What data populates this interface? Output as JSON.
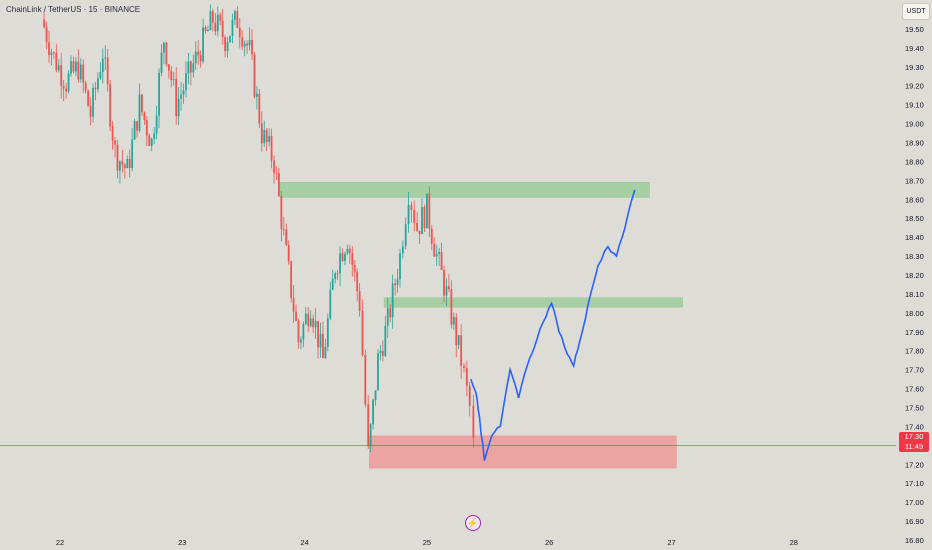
{
  "header": {
    "symbol_title": "ChainLink / TetherUS · 15 · BINANCE"
  },
  "currency_button": "USDT",
  "last_price": {
    "price": "17.30",
    "countdown": "11:49",
    "value": 17.3,
    "color": "#f23645"
  },
  "icons": {
    "snapshot": "lightning-icon"
  },
  "colors": {
    "background": "#dedcd6",
    "up": "#26a69a",
    "down": "#ef5350",
    "projection": "#2962ff",
    "supply_zone": "#8fc98f",
    "demand_zone": "#f28b8b"
  },
  "chart_data": {
    "type": "candlestick",
    "pair": "LINK/USDT",
    "timeframe": "15",
    "exchange": "BINANCE",
    "ylim": [
      16.8,
      19.6
    ],
    "y_ticks": [
      19.5,
      19.4,
      19.3,
      19.2,
      19.1,
      19.0,
      18.9,
      18.8,
      18.7,
      18.6,
      18.5,
      18.4,
      18.3,
      18.2,
      18.1,
      18.0,
      17.9,
      17.8,
      17.7,
      17.6,
      17.5,
      17.4,
      17.3,
      17.2,
      17.1,
      17.0,
      16.9,
      16.8
    ],
    "x_ticks": [
      "22",
      "23",
      "24",
      "25",
      "26",
      "27",
      "28"
    ],
    "price_path": [
      {
        "x": 21.85,
        "y": 19.55
      },
      {
        "x": 21.95,
        "y": 19.35
      },
      {
        "x": 22.05,
        "y": 19.22
      },
      {
        "x": 22.15,
        "y": 19.3
      },
      {
        "x": 22.25,
        "y": 19.05
      },
      {
        "x": 22.35,
        "y": 19.38
      },
      {
        "x": 22.45,
        "y": 18.85
      },
      {
        "x": 22.55,
        "y": 18.75
      },
      {
        "x": 22.65,
        "y": 19.1
      },
      {
        "x": 22.75,
        "y": 18.9
      },
      {
        "x": 22.85,
        "y": 19.45
      },
      {
        "x": 22.95,
        "y": 19.1
      },
      {
        "x": 23.05,
        "y": 19.25
      },
      {
        "x": 23.15,
        "y": 19.4
      },
      {
        "x": 23.25,
        "y": 19.55
      },
      {
        "x": 23.35,
        "y": 19.45
      },
      {
        "x": 23.45,
        "y": 19.55
      },
      {
        "x": 23.55,
        "y": 19.38
      },
      {
        "x": 23.65,
        "y": 18.95
      },
      {
        "x": 23.75,
        "y": 18.8
      },
      {
        "x": 23.85,
        "y": 18.3
      },
      {
        "x": 23.95,
        "y": 17.85
      },
      {
        "x": 24.05,
        "y": 18.05
      },
      {
        "x": 24.15,
        "y": 17.75
      },
      {
        "x": 24.25,
        "y": 18.25
      },
      {
        "x": 24.35,
        "y": 18.4
      },
      {
        "x": 24.45,
        "y": 18.05
      },
      {
        "x": 24.52,
        "y": 17.25
      },
      {
        "x": 24.6,
        "y": 17.75
      },
      {
        "x": 24.68,
        "y": 17.95
      },
      {
        "x": 24.78,
        "y": 18.3
      },
      {
        "x": 24.85,
        "y": 18.65
      },
      {
        "x": 24.92,
        "y": 18.45
      },
      {
        "x": 25.0,
        "y": 18.55
      },
      {
        "x": 25.08,
        "y": 18.3
      },
      {
        "x": 25.18,
        "y": 18.05
      },
      {
        "x": 25.28,
        "y": 17.75
      },
      {
        "x": 25.35,
        "y": 17.5
      },
      {
        "x": 25.38,
        "y": 17.3
      }
    ],
    "projection": [
      {
        "x": 25.36,
        "y": 17.65
      },
      {
        "x": 25.4,
        "y": 17.58
      },
      {
        "x": 25.43,
        "y": 17.45
      },
      {
        "x": 25.47,
        "y": 17.22
      },
      {
        "x": 25.53,
        "y": 17.35
      },
      {
        "x": 25.6,
        "y": 17.4
      },
      {
        "x": 25.68,
        "y": 17.7
      },
      {
        "x": 25.75,
        "y": 17.55
      },
      {
        "x": 25.82,
        "y": 17.72
      },
      {
        "x": 25.88,
        "y": 17.82
      },
      {
        "x": 25.95,
        "y": 17.95
      },
      {
        "x": 26.02,
        "y": 18.05
      },
      {
        "x": 26.08,
        "y": 17.9
      },
      {
        "x": 26.15,
        "y": 17.78
      },
      {
        "x": 26.2,
        "y": 17.72
      },
      {
        "x": 26.25,
        "y": 17.85
      },
      {
        "x": 26.32,
        "y": 18.05
      },
      {
        "x": 26.4,
        "y": 18.25
      },
      {
        "x": 26.48,
        "y": 18.35
      },
      {
        "x": 26.55,
        "y": 18.3
      },
      {
        "x": 26.62,
        "y": 18.45
      },
      {
        "x": 26.7,
        "y": 18.65
      }
    ],
    "zones": [
      {
        "name": "supply",
        "x0": 23.8,
        "x1": 26.82,
        "y0": 18.61,
        "y1": 18.69,
        "color": "#8fc98f"
      },
      {
        "name": "mid",
        "x0": 24.65,
        "x1": 27.09,
        "y0": 18.03,
        "y1": 18.08,
        "color": "#8fc98f"
      },
      {
        "name": "demand",
        "x0": 24.53,
        "x1": 27.04,
        "y0": 17.18,
        "y1": 17.35,
        "color": "#f28b8b"
      }
    ]
  }
}
